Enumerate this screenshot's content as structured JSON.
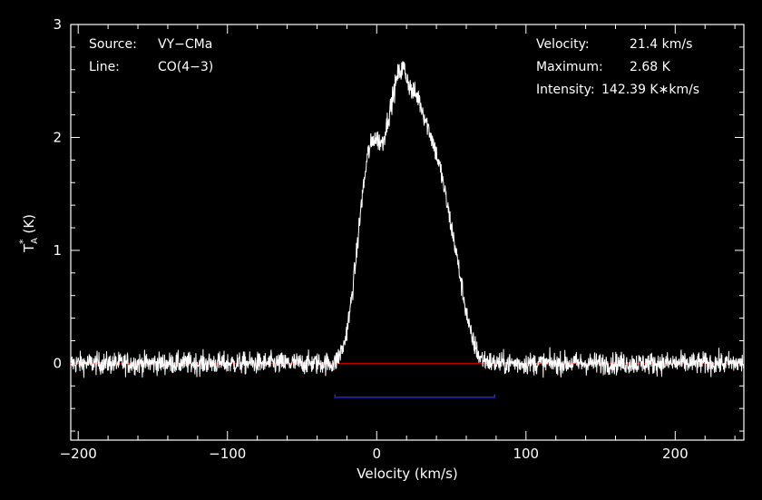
{
  "chart_data": {
    "type": "line",
    "xlabel": "Velocity (km/s)",
    "ylabel": "(K)",
    "ylabel_symbol": "T",
    "ylabel_sup": "*",
    "ylabel_sub": "A",
    "xlim": [
      -205,
      246
    ],
    "ylim": [
      -0.68,
      3.0
    ],
    "xticks": [
      -200,
      -100,
      0,
      100,
      200
    ],
    "yticks": [
      0,
      1,
      2,
      3
    ],
    "xtick_labels": [
      "−200",
      "−100",
      "0",
      "100",
      "200"
    ],
    "ytick_labels": [
      "0",
      "1",
      "2",
      "3"
    ],
    "background_color": "#000000",
    "foreground_color": "#ffffff",
    "baseline": {
      "value": 0,
      "color": "#c00000"
    },
    "integration_window": {
      "x_start": -28,
      "x_end": 79,
      "y": -0.3,
      "color": "#2020ff"
    },
    "series": [
      {
        "color": "#ffffff",
        "noise_rms": 0.07,
        "profile": [
          {
            "v": -205,
            "t": 0.0
          },
          {
            "v": -28,
            "t": 0.0
          },
          {
            "v": -22,
            "t": 0.15
          },
          {
            "v": -18,
            "t": 0.45
          },
          {
            "v": -14,
            "t": 0.9
          },
          {
            "v": -10,
            "t": 1.45
          },
          {
            "v": -6,
            "t": 1.85
          },
          {
            "v": -2,
            "t": 2.0
          },
          {
            "v": 4,
            "t": 1.95
          },
          {
            "v": 9,
            "t": 2.25
          },
          {
            "v": 14,
            "t": 2.55
          },
          {
            "v": 18,
            "t": 2.62
          },
          {
            "v": 23,
            "t": 2.42
          },
          {
            "v": 28,
            "t": 2.35
          },
          {
            "v": 33,
            "t": 2.15
          },
          {
            "v": 38,
            "t": 1.95
          },
          {
            "v": 43,
            "t": 1.7
          },
          {
            "v": 48,
            "t": 1.35
          },
          {
            "v": 53,
            "t": 1.0
          },
          {
            "v": 58,
            "t": 0.6
          },
          {
            "v": 63,
            "t": 0.25
          },
          {
            "v": 69,
            "t": 0.05
          },
          {
            "v": 78,
            "t": 0.0
          },
          {
            "v": 246,
            "t": 0.0
          }
        ]
      }
    ]
  },
  "info_left": {
    "source_label": "Source:",
    "source_value": "VY−CMa",
    "line_label": "Line:",
    "line_value": "CO(4−3)"
  },
  "info_right": {
    "velocity_label": "Velocity:",
    "velocity_value": "21.4 km/s",
    "maximum_label": "Maximum:",
    "maximum_value": "2.68 K",
    "intensity_label": "Intensity:",
    "intensity_value": "142.39 K∗km/s"
  }
}
